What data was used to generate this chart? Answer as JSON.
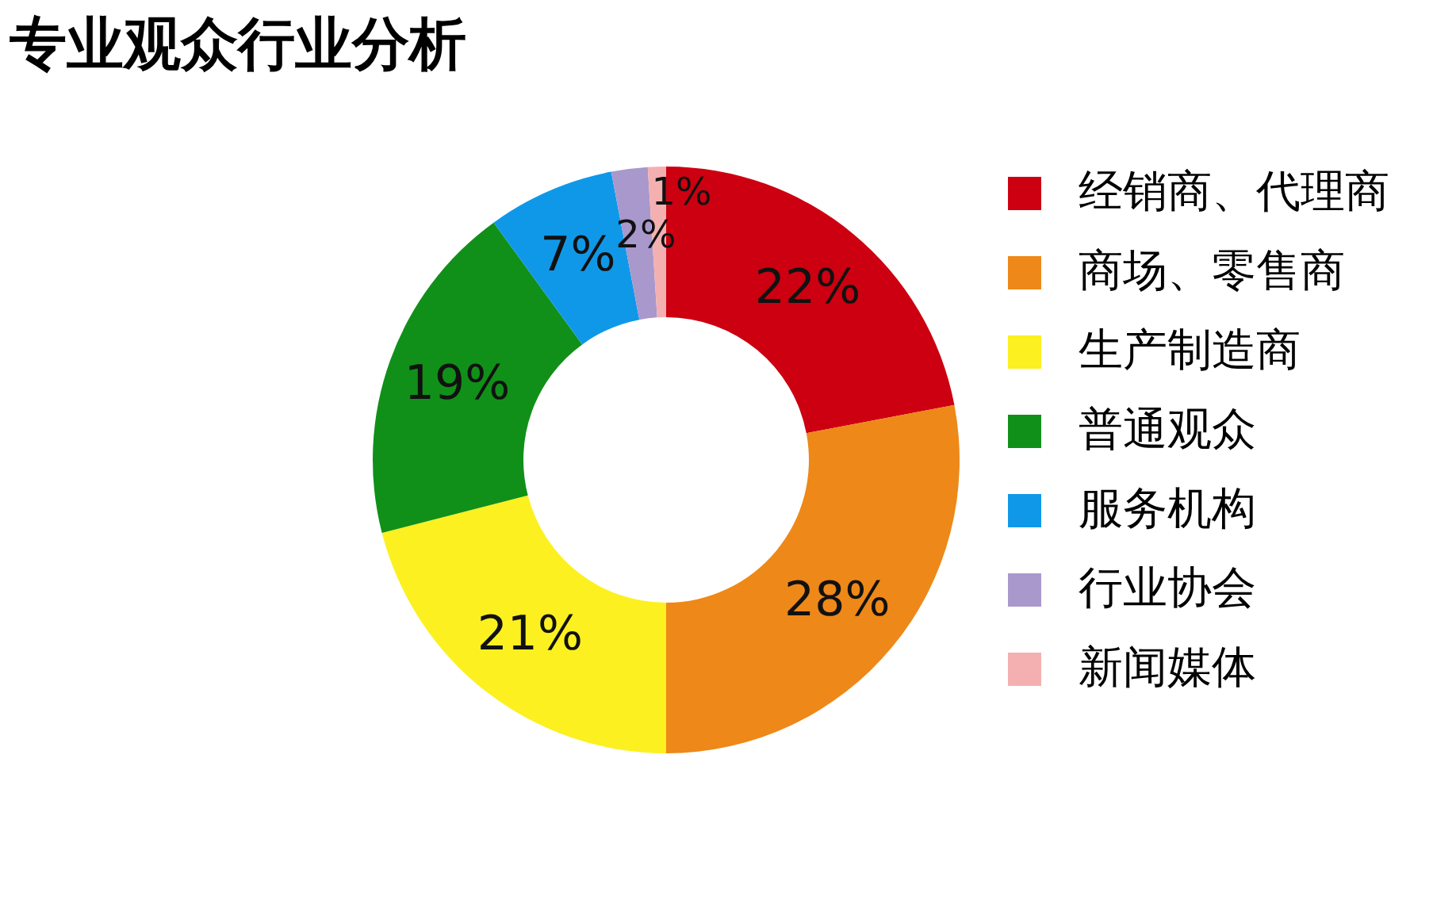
{
  "chart_data": {
    "type": "donut",
    "title": "专业观众行业分析",
    "categories": [
      "经销商、代理商",
      "商场、零售商",
      "生产制造商",
      "普通观众",
      "服务机构",
      "行业协会",
      "新闻媒体"
    ],
    "values": [
      22,
      28,
      21,
      19,
      7,
      2,
      1
    ],
    "value_labels": [
      "22%",
      "28%",
      "21%",
      "19%",
      "7%",
      "2%",
      "1%"
    ],
    "colors": [
      "#cc0010",
      "#ee8818",
      "#fcf020",
      "#109018",
      "#1098e8",
      "#a898cc",
      "#f4b0b0"
    ],
    "legend": "right"
  }
}
